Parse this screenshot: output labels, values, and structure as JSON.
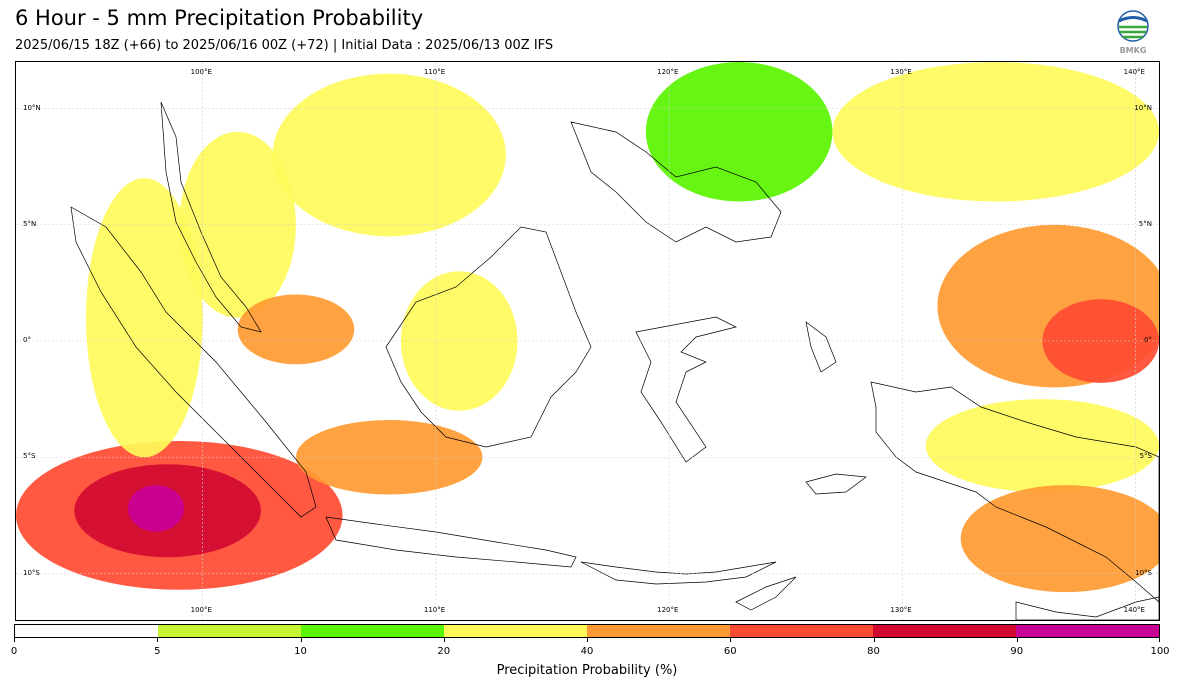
{
  "header": {
    "title": "6 Hour - 5 mm Precipitation Probability",
    "subtitle": "2025/06/15 18Z (+66) to 2025/06/16 00Z (+72) | Initial Data : 2025/06/13 00Z IFS",
    "logo_text": "BMKG"
  },
  "map": {
    "lon_range": [
      92,
      141
    ],
    "lat_range": [
      -12,
      12
    ],
    "lon_labels": [
      "100°E",
      "110°E",
      "120°E",
      "130°E",
      "140°E"
    ],
    "lat_labels": [
      "10°N",
      "5°N",
      "0°",
      "5°S",
      "10°S"
    ],
    "grid": true,
    "precip_regions": [
      {
        "name": "indian-ocean-sw-java",
        "lon": 99,
        "lat": -7.5,
        "rx": 7,
        "ry": 3.2,
        "prob": 65
      },
      {
        "name": "indian-ocean-core",
        "lon": 98.5,
        "lat": -7.3,
        "rx": 4,
        "ry": 2,
        "prob": 85
      },
      {
        "name": "indian-ocean-peak",
        "lon": 98,
        "lat": -7.2,
        "rx": 1.2,
        "ry": 1,
        "prob": 95
      },
      {
        "name": "sumatra-west",
        "lon": 97.5,
        "lat": 1,
        "rx": 2.5,
        "ry": 6,
        "prob": 30
      },
      {
        "name": "malay-peninsula",
        "lon": 101.5,
        "lat": 5,
        "rx": 2.5,
        "ry": 4,
        "prob": 25
      },
      {
        "name": "south-china-sea",
        "lon": 108,
        "lat": 8,
        "rx": 5,
        "ry": 3.5,
        "prob": 30
      },
      {
        "name": "riau-islands",
        "lon": 104,
        "lat": 0.5,
        "rx": 2.5,
        "ry": 1.5,
        "prob": 55
      },
      {
        "name": "java-sea",
        "lon": 108,
        "lat": -5,
        "rx": 4,
        "ry": 1.6,
        "prob": 45
      },
      {
        "name": "borneo-west",
        "lon": 111,
        "lat": 0,
        "rx": 2.5,
        "ry": 3,
        "prob": 25
      },
      {
        "name": "philippines",
        "lon": 123,
        "lat": 9,
        "rx": 4,
        "ry": 3,
        "prob": 15
      },
      {
        "name": "west-pacific-north",
        "lon": 134,
        "lat": 9,
        "rx": 7,
        "ry": 3,
        "prob": 25
      },
      {
        "name": "west-pacific-east",
        "lon": 136.5,
        "lat": 1.5,
        "rx": 5,
        "ry": 3.5,
        "prob": 55
      },
      {
        "name": "west-pacific-core",
        "lon": 138.5,
        "lat": 0,
        "rx": 2.5,
        "ry": 1.8,
        "prob": 70
      },
      {
        "name": "new-guinea",
        "lon": 136,
        "lat": -4.5,
        "rx": 5,
        "ry": 2,
        "prob": 30
      },
      {
        "name": "arafura-sea",
        "lon": 137,
        "lat": -8.5,
        "rx": 4.5,
        "ry": 2.3,
        "prob": 45
      }
    ]
  },
  "colorbar": {
    "title": "Precipitation Probability (%)",
    "ticks": [
      "0",
      "5",
      "10",
      "20",
      "40",
      "60",
      "80",
      "90",
      "100"
    ],
    "colors": [
      "#ffffff",
      "#c8f532",
      "#5af500",
      "#fffa5a",
      "#ff9b32",
      "#ff4b32",
      "#d20a32",
      "#c80096"
    ]
  }
}
